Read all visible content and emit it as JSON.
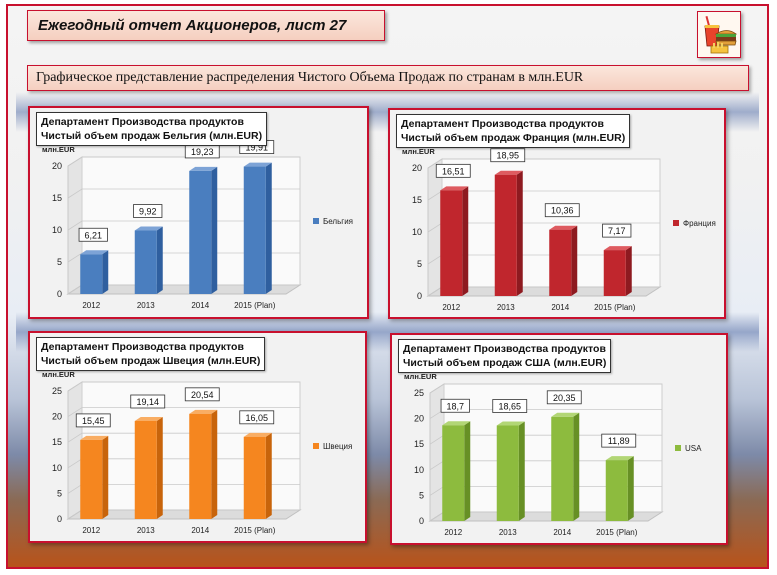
{
  "header": {
    "title": "Ежегодный отчет Акционеров,  лист 27",
    "subtitle": "Графическое представление распределения Чистого Объема Продаж по странам в млн.EUR"
  },
  "logo": {
    "icon": "fast-food-icon"
  },
  "panels": [
    {
      "line1": "Департамент Производства продуктов",
      "line2": "Чистый  объем продаж Бельгия  (млн.EUR)"
    },
    {
      "line1": "Департамент Производства продуктов",
      "line2": "Чистый  объем продаж Франция  (млн.EUR)"
    },
    {
      "line1": "Департамент Производства продуктов",
      "line2": "Чистый  объем продаж Швеция  (млн.EUR)"
    },
    {
      "line1": "Департамент Производства продуктов",
      "line2": "Чистый  объем продаж США (млн.EUR)"
    }
  ],
  "chart_data": [
    {
      "type": "bar",
      "title": "Чистый  объем продаж Бельгия  (млн.EUR)",
      "ylabel": "млн.EUR",
      "categories": [
        "2012",
        "2013",
        "2014",
        "2015 (Plan)"
      ],
      "series": [
        {
          "name": "Бельгия",
          "values": [
            6.21,
            9.92,
            19.23,
            19.91
          ]
        }
      ],
      "value_labels": [
        "6,21",
        "9,92",
        "19,23",
        "19,91"
      ],
      "ylim": [
        0,
        20
      ],
      "yticks": [
        "0",
        "5",
        "10",
        "15",
        "20"
      ],
      "tick_values": [
        0,
        5,
        10,
        15,
        20
      ],
      "legend": "right",
      "color": "#4a7ebf",
      "side": "#2f5f9f",
      "top": "#7da3d6"
    },
    {
      "type": "bar",
      "title": "Чистый  объем продаж Франция  (млн.EUR)",
      "ylabel": "млн.EUR",
      "categories": [
        "2012",
        "2013",
        "2014",
        "2015 (Plan)"
      ],
      "series": [
        {
          "name": "Франция",
          "values": [
            16.51,
            18.95,
            10.36,
            7.17
          ]
        }
      ],
      "value_labels": [
        "16,51",
        "18,95",
        "10,36",
        "7,17"
      ],
      "ylim": [
        0,
        20
      ],
      "yticks": [
        "0",
        "5",
        "10",
        "15",
        "20"
      ],
      "tick_values": [
        0,
        5,
        10,
        15,
        20
      ],
      "legend": "right",
      "color": "#c0262d",
      "side": "#8e1a20",
      "top": "#de5b60"
    },
    {
      "type": "bar",
      "title": "Чистый  объем продаж Швеция  (млн.EUR)",
      "ylabel": "млн.EUR",
      "categories": [
        "2012",
        "2013",
        "2014",
        "2015 (Plan)"
      ],
      "series": [
        {
          "name": "Швеция",
          "values": [
            15.45,
            19.14,
            20.54,
            16.05
          ]
        }
      ],
      "value_labels": [
        "15,45",
        "19,14",
        "20,54",
        "16,05"
      ],
      "ylim": [
        0,
        25
      ],
      "yticks": [
        "0",
        "5",
        "10",
        "15",
        "20",
        "25"
      ],
      "tick_values": [
        0,
        5,
        10,
        15,
        20,
        25
      ],
      "legend": "right",
      "color": "#f5861f",
      "side": "#c8640b",
      "top": "#f9ad63"
    },
    {
      "type": "bar",
      "title": "Чистый  объем продаж США (млн.EUR)",
      "ylabel": "млн.EUR",
      "categories": [
        "2012",
        "2013",
        "2014",
        "2015 (Plan)"
      ],
      "series": [
        {
          "name": "USA",
          "values": [
            18.7,
            18.65,
            20.35,
            11.89
          ]
        }
      ],
      "value_labels": [
        "18,7",
        "18,65",
        "20,35",
        "11,89"
      ],
      "ylim": [
        0,
        25
      ],
      "yticks": [
        "0",
        "5",
        "10",
        "15",
        "20",
        "25"
      ],
      "tick_values": [
        0,
        5,
        10,
        15,
        20,
        25
      ],
      "legend": "right",
      "color": "#8dbb3e",
      "side": "#679025",
      "top": "#b2d675"
    }
  ]
}
